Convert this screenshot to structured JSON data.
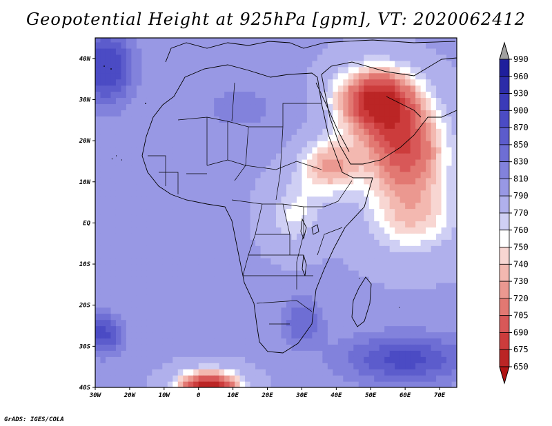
{
  "title": "Geopotential Height at 925hPa [gpm], VT: 2020062412",
  "credit": "GrADS: IGES/COLA",
  "map": {
    "lon_range": [
      -30,
      75
    ],
    "lat_range": [
      -40,
      45
    ],
    "lon_ticks": [
      {
        "lon": -30,
        "label": "30W"
      },
      {
        "lon": -20,
        "label": "20W"
      },
      {
        "lon": -10,
        "label": "10W"
      },
      {
        "lon": 0,
        "label": "0"
      },
      {
        "lon": 10,
        "label": "10E"
      },
      {
        "lon": 20,
        "label": "20E"
      },
      {
        "lon": 30,
        "label": "30E"
      },
      {
        "lon": 40,
        "label": "40E"
      },
      {
        "lon": 50,
        "label": "50E"
      },
      {
        "lon": 60,
        "label": "60E"
      },
      {
        "lon": 70,
        "label": "70E"
      }
    ],
    "lat_ticks": [
      {
        "lat": 40,
        "label": "40N"
      },
      {
        "lat": 30,
        "label": "30N"
      },
      {
        "lat": 20,
        "label": "20N"
      },
      {
        "lat": 10,
        "label": "10N"
      },
      {
        "lat": 0,
        "label": "EQ"
      },
      {
        "lat": -10,
        "label": "10S"
      },
      {
        "lat": -20,
        "label": "20S"
      },
      {
        "lat": -30,
        "label": "30S"
      },
      {
        "lat": -40,
        "label": "40S"
      }
    ],
    "field_centers": [
      {
        "lon": -27,
        "lat": 38,
        "value": 900,
        "sx": 8,
        "sy": 9
      },
      {
        "lon": -28,
        "lat": -27,
        "value": 880,
        "sx": 6,
        "sy": 5
      },
      {
        "lon": 60,
        "lat": -33,
        "value": 880,
        "sx": 18,
        "sy": 6
      },
      {
        "lon": 30,
        "lat": -24,
        "value": 850,
        "sx": 6,
        "sy": 6
      },
      {
        "lon": 12,
        "lat": 28,
        "value": 815,
        "sx": 16,
        "sy": 8
      },
      {
        "lon": 52,
        "lat": 30,
        "value": 670,
        "sx": 12,
        "sy": 8
      },
      {
        "lon": 60,
        "lat": 18,
        "value": 700,
        "sx": 12,
        "sy": 10
      },
      {
        "lon": 38,
        "lat": 14,
        "value": 730,
        "sx": 9,
        "sy": 7
      },
      {
        "lon": 62,
        "lat": 2,
        "value": 740,
        "sx": 14,
        "sy": 10
      },
      {
        "lon": 28,
        "lat": 2,
        "value": 758,
        "sx": 8,
        "sy": 8
      },
      {
        "lon": 3,
        "lat": -40,
        "value": 655,
        "sx": 9,
        "sy": 4
      }
    ]
  },
  "colorbar": {
    "levels": [
      "990",
      "960",
      "930",
      "900",
      "870",
      "850",
      "830",
      "810",
      "790",
      "770",
      "760",
      "750",
      "740",
      "730",
      "720",
      "705",
      "690",
      "675",
      "650"
    ],
    "colors": [
      "#1f1f9c",
      "#2c2ca8",
      "#3b3bb8",
      "#4b4bc4",
      "#5c5ccc",
      "#6e6ed4",
      "#8282dc",
      "#9898e4",
      "#b0b0ec",
      "#cfcff4",
      "#ffffff",
      "#f8d6d2",
      "#f3b8b0",
      "#eb9890",
      "#e27872",
      "#d85858",
      "#cc3c3c",
      "#bb2525",
      "#a31717"
    ],
    "over_color": "#a0a0a0",
    "under_color": "#b01414"
  }
}
